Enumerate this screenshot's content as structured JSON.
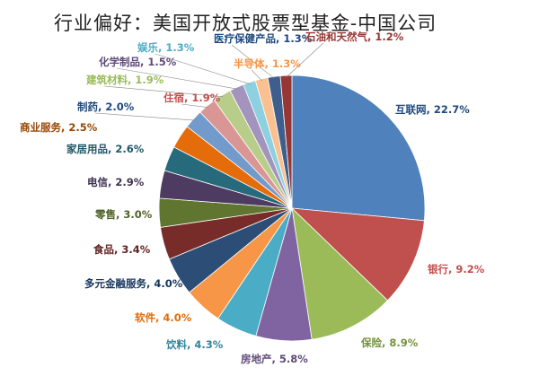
{
  "chart_data": {
    "type": "pie",
    "title": "行业偏好：美国开放式股票型基金-中国公司",
    "unit": "%",
    "slices": [
      {
        "name": "互联网",
        "value": 22.7,
        "label": "互联网, 22.7%",
        "color": "#4f81bd",
        "text_color": "#1f497d"
      },
      {
        "name": "银行",
        "value": 9.2,
        "label": "银行, 9.2%",
        "color": "#c0504d",
        "text_color": "#c0504d"
      },
      {
        "name": "保险",
        "value": 8.9,
        "label": "保险, 8.9%",
        "color": "#9bbb59",
        "text_color": "#76923c"
      },
      {
        "name": "房地产",
        "value": 5.8,
        "label": "房地产, 5.8%",
        "color": "#8064a2",
        "text_color": "#5f497a"
      },
      {
        "name": "饮料",
        "value": 4.3,
        "label": "饮料, 4.3%",
        "color": "#4bacc6",
        "text_color": "#31849b"
      },
      {
        "name": "软件",
        "value": 4.0,
        "label": "软件, 4.0%",
        "color": "#f79646",
        "text_color": "#e36c09"
      },
      {
        "name": "多元金融服务",
        "value": 4.0,
        "label": "多元金融服务, 4.0%",
        "color": "#2c4d75",
        "text_color": "#17365d"
      },
      {
        "name": "食品",
        "value": 3.4,
        "label": "食品, 3.4%",
        "color": "#772c2a",
        "text_color": "#632423"
      },
      {
        "name": "零售",
        "value": 3.0,
        "label": "零售, 3.0%",
        "color": "#5f7530",
        "text_color": "#4f6228"
      },
      {
        "name": "电信",
        "value": 2.9,
        "label": "电信, 2.9%",
        "color": "#4d3b62",
        "text_color": "#3f3151"
      },
      {
        "name": "家居用品",
        "value": 2.6,
        "label": "家居用品, 2.6%",
        "color": "#276a7c",
        "text_color": "#205867"
      },
      {
        "name": "商业服务",
        "value": 2.5,
        "label": "商业服务, 2.5%",
        "color": "#e46c0a",
        "text_color": "#974806"
      },
      {
        "name": "制药",
        "value": 2.0,
        "label": "制药, 2.0%",
        "color": "#729aca",
        "text_color": "#1f497d"
      },
      {
        "name": "住宿",
        "value": 1.9,
        "label": "住宿, 1.9%",
        "color": "#d99694",
        "text_color": "#c0504d"
      },
      {
        "name": "建筑材料",
        "value": 1.9,
        "label": "建筑材料, 1.9%",
        "color": "#b9cd8a",
        "text_color": "#9bbb59"
      },
      {
        "name": "化学制品",
        "value": 1.5,
        "label": "化学制品, 1.5%",
        "color": "#a394bd",
        "text_color": "#5f497a"
      },
      {
        "name": "娱乐",
        "value": 1.3,
        "label": "娱乐, 1.3%",
        "color": "#8dd0e0",
        "text_color": "#4bacc6"
      },
      {
        "name": "半导体",
        "value": 1.3,
        "label": "半导体, 1.3%",
        "color": "#fac090",
        "text_color": "#f79646"
      },
      {
        "name": "医疗保健产品",
        "value": 1.3,
        "label": "医疗保健产品, 1.3%",
        "color": "#3e5f8e",
        "text_color": "#1f497d"
      },
      {
        "name": "石油和天然气",
        "value": 1.2,
        "label": "石油和天然气, 1.2%",
        "color": "#953735",
        "text_color": "#953735"
      }
    ]
  }
}
